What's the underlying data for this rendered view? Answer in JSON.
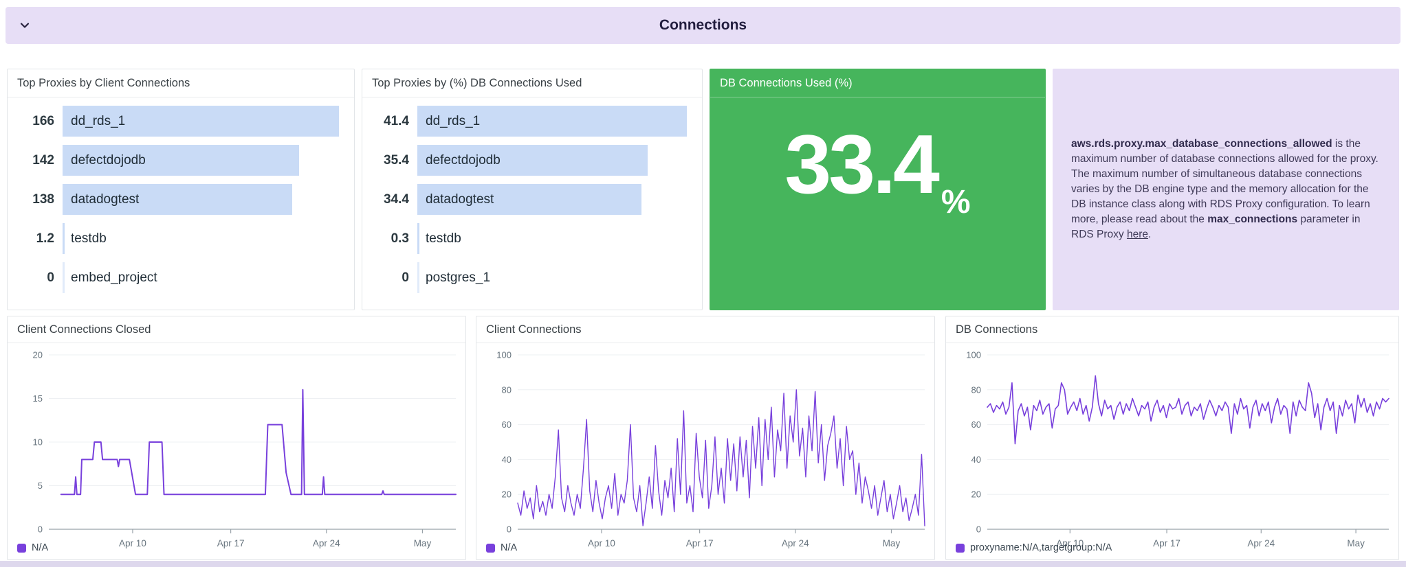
{
  "header": {
    "title": "Connections"
  },
  "colors": {
    "accent_purple": "#7840dc",
    "bar_blue": "#c9dbf6",
    "green": "#46b55c",
    "lavender": "#e7def6",
    "axis_text": "#66737d",
    "gridline": "#eef0f3",
    "axis_line": "#99a2a9"
  },
  "note": {
    "segments": [
      {
        "text": "aws.rds.proxy.max_database_connections_allowed",
        "style": "bold"
      },
      {
        "text": " is the maximum number of database connections allowed for the proxy. The maximum number of simultaneous database connections varies by the DB engine type and the memory allocation for the DB instance class along with RDS Proxy configuration. To learn more, please read about the ",
        "style": "normal"
      },
      {
        "text": "max_connections",
        "style": "bold"
      },
      {
        "text": " parameter in RDS Proxy ",
        "style": "normal"
      },
      {
        "text": "here",
        "style": "link"
      },
      {
        "text": ".",
        "style": "normal"
      }
    ]
  },
  "chart_data": [
    {
      "type": "bar",
      "orientation": "horizontal",
      "title": "Top Proxies by Client Connections",
      "categories": [
        "dd_rds_1",
        "defectdojodb",
        "datadogtest",
        "testdb",
        "embed_project"
      ],
      "values": [
        166,
        142,
        138,
        1.2,
        0
      ],
      "value_labels": [
        "166",
        "142",
        "138",
        "1.2",
        "0"
      ]
    },
    {
      "type": "bar",
      "orientation": "horizontal",
      "title": "Top Proxies by (%) DB Connections Used",
      "categories": [
        "dd_rds_1",
        "defectdojodb",
        "datadogtest",
        "testdb",
        "postgres_1"
      ],
      "values": [
        41.4,
        35.4,
        34.4,
        0.3,
        0
      ],
      "value_labels": [
        "41.4",
        "35.4",
        "34.4",
        "0.3",
        "0"
      ]
    },
    {
      "type": "query_value",
      "title": "DB Connections Used (%)",
      "value": 33.4,
      "display": "33.4",
      "unit": "%"
    },
    {
      "type": "line",
      "title": "Client Connections Closed",
      "ylim": [
        0,
        20
      ],
      "y_ticks": [
        0,
        5,
        10,
        15,
        20
      ],
      "x_tick_labels": [
        "Apr 10",
        "Apr 17",
        "Apr 24",
        "May"
      ],
      "x_tick_pos": [
        0.206,
        0.447,
        0.682,
        0.918
      ],
      "legend_position": "bottom-left",
      "grid": true,
      "series": [
        {
          "name": "N/A",
          "points": [
            [
              3,
              4
            ],
            [
              6.3,
              4
            ],
            [
              6.6,
              6
            ],
            [
              6.9,
              4
            ],
            [
              7.8,
              4
            ],
            [
              8.1,
              8
            ],
            [
              10.8,
              8
            ],
            [
              11.2,
              10
            ],
            [
              12.8,
              10
            ],
            [
              13.2,
              8
            ],
            [
              16.8,
              8
            ],
            [
              17.1,
              7.2
            ],
            [
              17.4,
              8
            ],
            [
              19.8,
              8
            ],
            [
              21.3,
              4
            ],
            [
              24.2,
              4
            ],
            [
              24.7,
              10
            ],
            [
              27.8,
              10
            ],
            [
              28.3,
              4
            ],
            [
              53.2,
              4
            ],
            [
              53.8,
              12
            ],
            [
              57.3,
              12
            ],
            [
              58.3,
              6.5
            ],
            [
              59.5,
              4
            ],
            [
              62.1,
              4
            ],
            [
              62.4,
              16
            ],
            [
              62.8,
              4
            ],
            [
              67.2,
              4
            ],
            [
              67.5,
              6
            ],
            [
              67.8,
              4
            ],
            [
              81.8,
              4
            ],
            [
              82.1,
              4.4
            ],
            [
              82.4,
              4
            ],
            [
              100,
              4
            ]
          ]
        }
      ]
    },
    {
      "type": "line",
      "title": "Client Connections",
      "ylim": [
        0,
        100
      ],
      "y_ticks": [
        0,
        20,
        40,
        60,
        80,
        100
      ],
      "x_tick_labels": [
        "Apr 10",
        "Apr 17",
        "Apr 24",
        "May"
      ],
      "x_tick_pos": [
        0.206,
        0.447,
        0.682,
        0.918
      ],
      "legend_position": "bottom-left",
      "grid": true,
      "series": [
        {
          "name": "N/A",
          "values": [
            15,
            8,
            22,
            12,
            18,
            6,
            25,
            10,
            16,
            8,
            20,
            12,
            30,
            57,
            18,
            10,
            25,
            15,
            8,
            20,
            12,
            35,
            63,
            22,
            10,
            28,
            15,
            6,
            18,
            25,
            12,
            32,
            8,
            20,
            15,
            28,
            60,
            18,
            10,
            25,
            2,
            15,
            30,
            12,
            48,
            22,
            8,
            28,
            18,
            35,
            10,
            52,
            20,
            68,
            15,
            25,
            10,
            55,
            30,
            18,
            51,
            12,
            25,
            53,
            20,
            35,
            15,
            52,
            28,
            49,
            22,
            53,
            30,
            51,
            18,
            59,
            35,
            64,
            25,
            63,
            40,
            70,
            30,
            57,
            45,
            78,
            35,
            65,
            50,
            80,
            42,
            58,
            30,
            65,
            45,
            79,
            38,
            60,
            28,
            48,
            55,
            65,
            35,
            52,
            25,
            59,
            40,
            45,
            20,
            38,
            15,
            30,
            22,
            12,
            25,
            8,
            18,
            28,
            10,
            20,
            6,
            15,
            25,
            10,
            18,
            5,
            12,
            20,
            8,
            43,
            2
          ]
        }
      ]
    },
    {
      "type": "line",
      "title": "DB Connections",
      "ylim": [
        0,
        100
      ],
      "y_ticks": [
        0,
        20,
        40,
        60,
        80,
        100
      ],
      "x_tick_labels": [
        "Apr 10",
        "Apr 17",
        "Apr 24",
        "May"
      ],
      "x_tick_pos": [
        0.206,
        0.447,
        0.682,
        0.918
      ],
      "legend_position": "bottom-left",
      "grid": true,
      "series": [
        {
          "name": "proxyname:N/A,targetgroup:N/A",
          "values": [
            70,
            72,
            67,
            71,
            69,
            73,
            66,
            70,
            84,
            49,
            68,
            72,
            65,
            70,
            57,
            71,
            68,
            74,
            66,
            70,
            72,
            58,
            69,
            71,
            84,
            80,
            66,
            70,
            73,
            68,
            75,
            66,
            71,
            62,
            70,
            88,
            72,
            65,
            74,
            69,
            71,
            63,
            70,
            73,
            66,
            72,
            68,
            75,
            70,
            65,
            71,
            69,
            73,
            62,
            70,
            74,
            67,
            71,
            64,
            72,
            69,
            70,
            75,
            66,
            71,
            73,
            65,
            70,
            68,
            72,
            63,
            69,
            74,
            70,
            65,
            71,
            68,
            73,
            70,
            55,
            72,
            66,
            75,
            69,
            71,
            58,
            70,
            74,
            65,
            72,
            68,
            73,
            61,
            70,
            75,
            66,
            71,
            69,
            55,
            73,
            65,
            74,
            70,
            68,
            84,
            78,
            64,
            72,
            57,
            70,
            75,
            68,
            73,
            55,
            71,
            65,
            74,
            69,
            72,
            61,
            77,
            70,
            75,
            67,
            72,
            65,
            73,
            69,
            75,
            73,
            75
          ]
        }
      ]
    }
  ]
}
